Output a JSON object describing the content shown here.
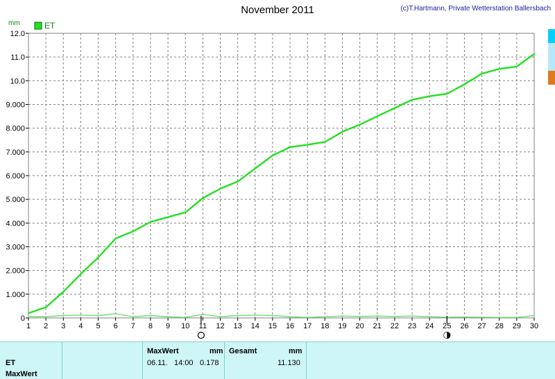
{
  "header": {
    "title": "November 2011",
    "copyright": "(c)T.Hartmann, Private Wetterstation Ballersbach"
  },
  "chart_data": {
    "type": "line",
    "unit": "mm",
    "x": [
      1,
      2,
      3,
      4,
      5,
      6,
      7,
      8,
      9,
      10,
      11,
      12,
      13,
      14,
      15,
      16,
      17,
      18,
      19,
      20,
      21,
      22,
      23,
      24,
      25,
      26,
      27,
      28,
      29,
      30
    ],
    "xlim": [
      1,
      30
    ],
    "ylim": [
      0,
      12
    ],
    "y_ticks": [
      "0",
      "1.000",
      "2.000",
      "3.000",
      "4.000",
      "5.000",
      "6.000",
      "7.000",
      "8.000",
      "9.000",
      "10.0",
      "11.0",
      "12.0"
    ],
    "grid": true,
    "legend": "top-left",
    "series": [
      {
        "name": "ET",
        "color": "#22e022",
        "values": [
          0.2,
          0.45,
          1.1,
          1.85,
          2.55,
          3.35,
          3.65,
          4.05,
          4.25,
          4.45,
          5.05,
          5.45,
          5.75,
          6.3,
          6.85,
          7.2,
          7.3,
          7.42,
          7.85,
          8.15,
          8.5,
          8.85,
          9.2,
          9.35,
          9.45,
          9.85,
          10.3,
          10.5,
          10.6,
          11.13
        ]
      },
      {
        "color": "#66dd66",
        "values": [
          0.05,
          0.05,
          0.1,
          0.12,
          0.1,
          0.178,
          0.05,
          0.1,
          0.05,
          0.02,
          0.15,
          0.05,
          0.1,
          0.12,
          0.1,
          0.05,
          0.02,
          0.05,
          0.08,
          0.06,
          0.08,
          0.06,
          0.08,
          0.05,
          0.03,
          0.04,
          0.03,
          0.02,
          0.02,
          0.1
        ]
      }
    ],
    "moon_markers": [
      {
        "day": 10.9,
        "phase": "full-moon"
      },
      {
        "day": 25.0,
        "phase": "new-moon"
      }
    ]
  },
  "summary": {
    "row1_label": "ET",
    "row2_label": "MaxWert",
    "max_header": "MaxWert",
    "max_unit": "mm",
    "max_date": "06.11.",
    "max_time": "14:00",
    "max_value": "0.178",
    "total_header": "Gesamt",
    "total_unit": "mm",
    "total_value": "11.130"
  }
}
